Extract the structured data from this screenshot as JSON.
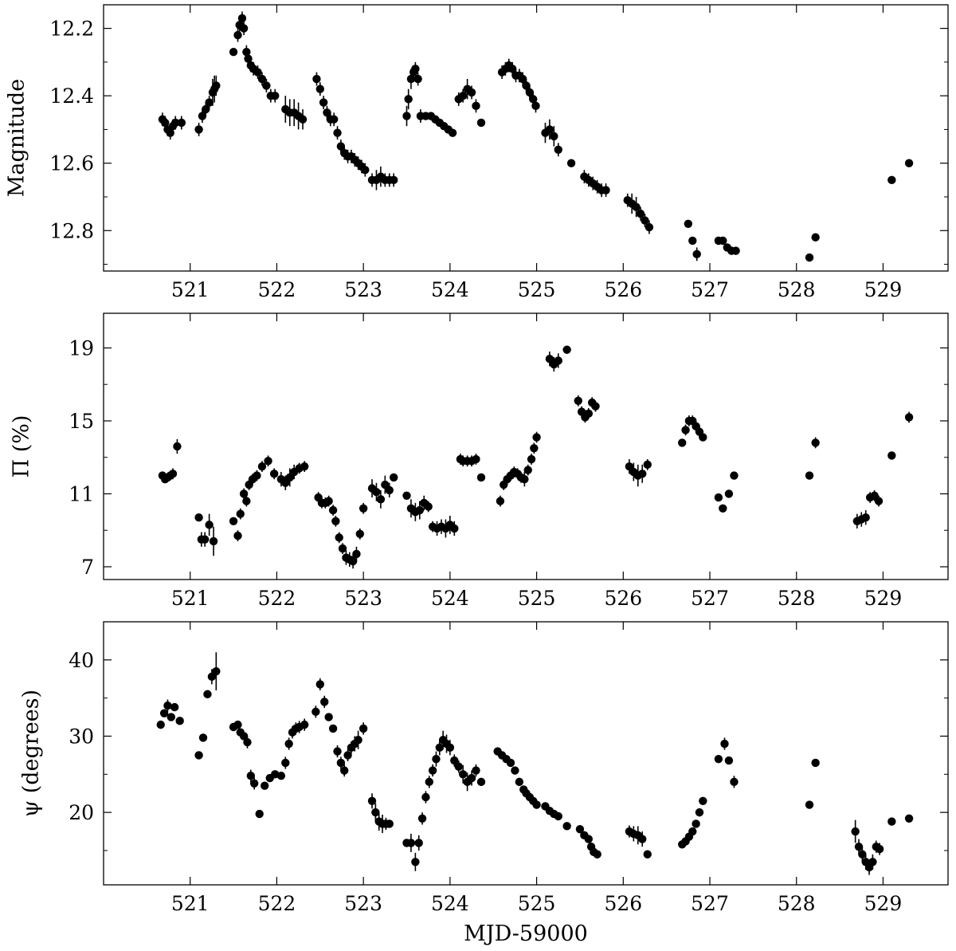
{
  "chart_data": [
    {
      "type": "scatter",
      "ylabel": "Magnitude",
      "xlabel": "",
      "xlim": [
        520.0,
        529.75
      ],
      "ylim": [
        12.92,
        12.13
      ],
      "y_inverted": true,
      "xticks": [
        521,
        522,
        523,
        524,
        525,
        526,
        527,
        528,
        529
      ],
      "yticks": [
        12.2,
        12.4,
        12.6,
        12.8
      ],
      "yticks_minor": [
        12.3,
        12.5,
        12.7,
        12.9
      ],
      "yticklabels": [
        "12.2",
        "12.4",
        "12.6",
        "12.8"
      ],
      "grid": false,
      "x": [
        520.68,
        520.71,
        520.74,
        520.77,
        520.8,
        520.83,
        520.9,
        521.1,
        521.14,
        521.18,
        521.22,
        521.26,
        521.28,
        521.3,
        521.5,
        521.55,
        521.57,
        521.6,
        521.62,
        521.65,
        521.67,
        521.7,
        521.73,
        521.78,
        521.83,
        521.88,
        521.93,
        521.98,
        522.1,
        522.15,
        522.2,
        522.25,
        522.3,
        522.46,
        522.5,
        522.54,
        522.58,
        522.62,
        522.66,
        522.7,
        522.74,
        522.78,
        522.82,
        522.86,
        522.9,
        522.94,
        522.98,
        523.02,
        523.1,
        523.15,
        523.2,
        523.25,
        523.3,
        523.35,
        523.5,
        523.52,
        523.55,
        523.58,
        523.6,
        523.63,
        523.66,
        523.72,
        523.78,
        523.83,
        523.88,
        523.93,
        523.98,
        524.03,
        524.1,
        524.15,
        524.2,
        524.25,
        524.3,
        524.36,
        524.6,
        524.64,
        524.68,
        524.72,
        524.76,
        524.8,
        524.84,
        524.88,
        524.92,
        524.96,
        524.99,
        525.1,
        525.15,
        525.2,
        525.25,
        525.4,
        525.55,
        525.6,
        525.65,
        525.7,
        525.75,
        525.8,
        526.05,
        526.1,
        526.15,
        526.2,
        526.25,
        526.3,
        526.75,
        526.8,
        526.85,
        527.1,
        527.15,
        527.2,
        527.25,
        527.3,
        528.15,
        528.22,
        529.1,
        529.3
      ],
      "y": [
        12.47,
        12.48,
        12.5,
        12.51,
        12.49,
        12.48,
        12.48,
        12.5,
        12.46,
        12.44,
        12.42,
        12.39,
        12.38,
        12.37,
        12.27,
        12.22,
        12.19,
        12.17,
        12.2,
        12.27,
        12.29,
        12.31,
        12.32,
        12.33,
        12.35,
        12.37,
        12.4,
        12.4,
        12.44,
        12.45,
        12.45,
        12.46,
        12.47,
        12.35,
        12.38,
        12.42,
        12.45,
        12.47,
        12.47,
        12.51,
        12.55,
        12.57,
        12.58,
        12.58,
        12.59,
        12.6,
        12.61,
        12.62,
        12.65,
        12.65,
        12.64,
        12.65,
        12.65,
        12.65,
        12.46,
        12.41,
        12.35,
        12.33,
        12.32,
        12.35,
        12.46,
        12.46,
        12.46,
        12.47,
        12.48,
        12.49,
        12.5,
        12.51,
        12.41,
        12.4,
        12.38,
        12.39,
        12.43,
        12.48,
        12.33,
        12.32,
        12.31,
        12.32,
        12.34,
        12.34,
        12.35,
        12.37,
        12.39,
        12.41,
        12.43,
        12.51,
        12.5,
        12.52,
        12.56,
        12.6,
        12.64,
        12.65,
        12.66,
        12.67,
        12.68,
        12.68,
        12.71,
        12.72,
        12.73,
        12.75,
        12.77,
        12.79,
        12.78,
        12.83,
        12.87,
        12.83,
        12.83,
        12.85,
        12.86,
        12.86,
        12.88,
        12.82,
        12.65,
        12.6
      ],
      "yerr": [
        0.02,
        0.02,
        0.02,
        0.02,
        0.02,
        0.02,
        0.02,
        0.02,
        0.02,
        0.02,
        0.02,
        0.04,
        0.04,
        0.03,
        0.01,
        0.02,
        0.02,
        0.02,
        0.02,
        0.02,
        0.02,
        0.02,
        0.02,
        0.02,
        0.02,
        0.02,
        0.02,
        0.02,
        0.04,
        0.04,
        0.04,
        0.04,
        0.03,
        0.02,
        0.02,
        0.02,
        0.02,
        0.02,
        0.02,
        0.02,
        0.02,
        0.02,
        0.02,
        0.02,
        0.02,
        0.02,
        0.02,
        0.02,
        0.02,
        0.03,
        0.03,
        0.02,
        0.02,
        0.02,
        0.03,
        0.03,
        0.03,
        0.02,
        0.02,
        0.02,
        0.02,
        0.01,
        0.01,
        0.01,
        0.01,
        0.01,
        0.01,
        0.01,
        0.02,
        0.02,
        0.03,
        0.02,
        0.02,
        0.01,
        0.02,
        0.02,
        0.02,
        0.02,
        0.02,
        0.02,
        0.02,
        0.02,
        0.02,
        0.02,
        0.02,
        0.03,
        0.03,
        0.03,
        0.02,
        0.01,
        0.02,
        0.02,
        0.02,
        0.02,
        0.02,
        0.02,
        0.02,
        0.03,
        0.03,
        0.02,
        0.02,
        0.02,
        0.01,
        0.01,
        0.02,
        0.01,
        0.01,
        0.01,
        0.01,
        0.01,
        0.01,
        0.01,
        0.01,
        0.01
      ]
    },
    {
      "type": "scatter",
      "ylabel": "Π (%)",
      "xlabel": "",
      "xlim": [
        520.0,
        529.75
      ],
      "ylim": [
        6.3,
        20.9
      ],
      "xticks": [
        521,
        522,
        523,
        524,
        525,
        526,
        527,
        528,
        529
      ],
      "yticks": [
        7,
        11,
        15,
        19
      ],
      "yticks_minor": [
        9,
        13,
        17
      ],
      "yticklabels": [
        "7",
        "11",
        "15",
        "19"
      ],
      "grid": false,
      "x": [
        520.68,
        520.71,
        520.74,
        520.77,
        520.8,
        520.85,
        521.1,
        521.13,
        521.17,
        521.22,
        521.27,
        521.5,
        521.55,
        521.58,
        521.62,
        521.65,
        521.68,
        521.72,
        521.77,
        521.83,
        521.9,
        521.97,
        522.05,
        522.1,
        522.15,
        522.2,
        522.26,
        522.32,
        522.48,
        522.52,
        522.56,
        522.6,
        522.65,
        522.68,
        522.72,
        522.76,
        522.8,
        522.84,
        522.88,
        522.92,
        522.96,
        523.0,
        523.1,
        523.15,
        523.2,
        523.25,
        523.3,
        523.35,
        523.5,
        523.55,
        523.6,
        523.65,
        523.7,
        523.75,
        523.8,
        523.85,
        523.9,
        523.95,
        524.0,
        524.05,
        524.12,
        524.15,
        524.2,
        524.25,
        524.3,
        524.36,
        524.58,
        524.62,
        524.66,
        524.7,
        524.74,
        524.78,
        524.82,
        524.86,
        524.9,
        524.94,
        524.97,
        525.0,
        525.15,
        525.2,
        525.25,
        525.35,
        525.48,
        525.52,
        525.56,
        525.6,
        525.64,
        525.68,
        526.07,
        526.12,
        526.17,
        526.22,
        526.28,
        526.68,
        526.72,
        526.76,
        526.8,
        526.84,
        526.88,
        526.92,
        527.1,
        527.15,
        527.22,
        527.28,
        528.15,
        528.22,
        528.7,
        528.75,
        528.8,
        528.85,
        528.9,
        528.95,
        529.1,
        529.3
      ],
      "y": [
        12.0,
        11.8,
        11.9,
        12.0,
        12.1,
        13.6,
        9.7,
        8.5,
        8.5,
        9.3,
        8.4,
        9.5,
        8.7,
        9.9,
        11.0,
        10.6,
        11.5,
        11.8,
        12.0,
        12.5,
        12.8,
        12.1,
        11.8,
        11.6,
        11.9,
        12.2,
        12.4,
        12.5,
        10.8,
        10.5,
        10.5,
        10.6,
        10.1,
        9.5,
        8.6,
        8.0,
        7.5,
        7.4,
        7.3,
        7.7,
        8.8,
        10.2,
        11.3,
        11.1,
        10.7,
        11.5,
        11.2,
        11.9,
        10.9,
        10.2,
        10.0,
        10.1,
        10.5,
        10.3,
        9.2,
        9.1,
        9.2,
        9.1,
        9.3,
        9.1,
        12.9,
        12.8,
        12.8,
        12.8,
        12.9,
        11.9,
        10.6,
        11.5,
        11.8,
        12.0,
        12.2,
        12.1,
        11.9,
        11.8,
        12.3,
        12.9,
        13.5,
        14.1,
        18.4,
        18.1,
        18.3,
        18.9,
        16.1,
        15.5,
        15.2,
        15.4,
        16.0,
        15.8,
        12.5,
        12.2,
        12.0,
        12.1,
        12.6,
        13.8,
        14.5,
        15.0,
        15.0,
        14.7,
        14.4,
        14.1,
        10.8,
        10.2,
        11.0,
        12.0,
        12.0,
        13.8,
        9.5,
        9.6,
        9.7,
        10.8,
        10.9,
        10.6,
        13.1,
        15.2
      ],
      "yerr": [
        0.2,
        0.2,
        0.2,
        0.2,
        0.3,
        0.4,
        0.2,
        0.4,
        0.4,
        0.6,
        0.8,
        0.2,
        0.3,
        0.3,
        0.3,
        0.3,
        0.3,
        0.3,
        0.3,
        0.3,
        0.3,
        0.3,
        0.4,
        0.4,
        0.5,
        0.4,
        0.3,
        0.3,
        0.3,
        0.3,
        0.3,
        0.3,
        0.3,
        0.3,
        0.3,
        0.3,
        0.4,
        0.4,
        0.4,
        0.4,
        0.3,
        0.3,
        0.5,
        0.5,
        0.5,
        0.5,
        0.4,
        0.2,
        0.2,
        0.5,
        0.5,
        0.5,
        0.4,
        0.3,
        0.3,
        0.4,
        0.4,
        0.5,
        0.5,
        0.4,
        0.3,
        0.3,
        0.3,
        0.3,
        0.3,
        0.2,
        0.3,
        0.3,
        0.3,
        0.3,
        0.3,
        0.3,
        0.3,
        0.4,
        0.3,
        0.3,
        0.3,
        0.3,
        0.4,
        0.4,
        0.4,
        0.2,
        0.3,
        0.3,
        0.3,
        0.3,
        0.3,
        0.3,
        0.4,
        0.5,
        0.6,
        0.5,
        0.3,
        0.2,
        0.3,
        0.3,
        0.3,
        0.3,
        0.3,
        0.2,
        0.2,
        0.2,
        0.2,
        0.2,
        0.2,
        0.3,
        0.4,
        0.4,
        0.4,
        0.3,
        0.3,
        0.3,
        0.2,
        0.3
      ]
    },
    {
      "type": "scatter",
      "ylabel": "ψ (degrees)",
      "xlabel": "MJD-59000",
      "xlim": [
        520.0,
        529.75
      ],
      "ylim": [
        10.5,
        45.0
      ],
      "xticks": [
        521,
        522,
        523,
        524,
        525,
        526,
        527,
        528,
        529
      ],
      "xticklabels": [
        "521",
        "522",
        "523",
        "524",
        "525",
        "526",
        "527",
        "528",
        "529"
      ],
      "yticks": [
        20,
        30,
        40
      ],
      "yticks_minor": [
        15,
        25,
        35
      ],
      "yticklabels": [
        "20",
        "30",
        "40"
      ],
      "grid": false,
      "x": [
        520.66,
        520.7,
        520.74,
        520.78,
        520.82,
        520.88,
        521.1,
        521.15,
        521.2,
        521.25,
        521.3,
        521.5,
        521.55,
        521.58,
        521.62,
        521.66,
        521.7,
        521.74,
        521.8,
        521.86,
        521.92,
        521.98,
        522.05,
        522.1,
        522.14,
        522.18,
        522.22,
        522.26,
        522.32,
        522.45,
        522.5,
        522.55,
        522.6,
        522.65,
        522.7,
        522.74,
        522.78,
        522.82,
        522.86,
        522.9,
        522.94,
        523.0,
        523.1,
        523.14,
        523.18,
        523.22,
        523.26,
        523.3,
        523.5,
        523.55,
        523.6,
        523.64,
        523.68,
        523.72,
        523.76,
        523.8,
        523.84,
        523.88,
        523.92,
        523.96,
        524.0,
        524.05,
        524.1,
        524.15,
        524.2,
        524.25,
        524.3,
        524.36,
        524.55,
        524.6,
        524.65,
        524.7,
        524.75,
        524.8,
        524.85,
        524.88,
        524.92,
        524.96,
        525.0,
        525.1,
        525.15,
        525.2,
        525.25,
        525.35,
        525.5,
        525.55,
        525.6,
        525.63,
        525.66,
        525.7,
        526.07,
        526.12,
        526.17,
        526.22,
        526.28,
        526.68,
        526.72,
        526.76,
        526.8,
        526.84,
        526.88,
        526.92,
        527.1,
        527.17,
        527.22,
        527.28,
        528.15,
        528.22,
        528.68,
        528.72,
        528.76,
        528.8,
        528.84,
        528.88,
        528.92,
        528.96,
        529.1,
        529.3
      ],
      "y": [
        31.5,
        33.0,
        34.0,
        32.5,
        33.8,
        32.0,
        27.5,
        29.8,
        35.5,
        37.8,
        38.5,
        31.2,
        31.5,
        30.5,
        30.0,
        29.2,
        24.8,
        23.8,
        19.8,
        23.5,
        24.5,
        25.0,
        24.8,
        26.5,
        29.0,
        30.5,
        31.0,
        31.2,
        31.5,
        33.2,
        36.8,
        34.5,
        32.5,
        31.0,
        28.0,
        26.5,
        25.5,
        27.5,
        28.5,
        29.0,
        29.5,
        31.0,
        21.5,
        20.0,
        18.8,
        18.5,
        18.5,
        18.5,
        16.0,
        16.0,
        13.5,
        16.0,
        19.2,
        22.0,
        24.0,
        25.5,
        27.0,
        28.5,
        29.5,
        29.0,
        28.5,
        26.8,
        26.0,
        25.0,
        24.0,
        24.5,
        25.5,
        24.0,
        28.0,
        27.5,
        27.0,
        26.5,
        25.5,
        24.0,
        23.0,
        22.5,
        22.0,
        21.5,
        21.0,
        20.8,
        20.2,
        19.8,
        19.5,
        18.2,
        17.8,
        17.0,
        16.5,
        15.5,
        14.8,
        14.5,
        17.5,
        17.2,
        17.0,
        16.5,
        14.5,
        15.8,
        16.2,
        16.8,
        17.5,
        18.5,
        20.0,
        21.5,
        27.0,
        29.0,
        26.8,
        24.0,
        21.0,
        26.5,
        17.5,
        15.5,
        14.5,
        13.5,
        12.8,
        13.5,
        15.5,
        15.2,
        18.8,
        19.2
      ],
      "yerr": [
        0.5,
        0.5,
        0.8,
        0.5,
        0.5,
        0.5,
        0.5,
        0.5,
        0.5,
        1.0,
        2.5,
        0.5,
        0.5,
        0.5,
        0.5,
        0.8,
        0.8,
        0.8,
        0.5,
        0.5,
        0.5,
        0.5,
        0.5,
        0.8,
        0.8,
        0.8,
        0.8,
        0.8,
        0.8,
        0.8,
        0.8,
        0.8,
        0.5,
        0.5,
        0.8,
        0.8,
        0.8,
        0.8,
        0.8,
        1.0,
        1.2,
        0.8,
        1.0,
        1.2,
        1.2,
        1.2,
        0.8,
        0.5,
        0.5,
        1.2,
        1.2,
        1.0,
        0.8,
        0.8,
        0.8,
        0.8,
        1.0,
        1.0,
        1.2,
        1.2,
        1.0,
        0.8,
        0.8,
        1.2,
        1.2,
        1.0,
        0.8,
        0.5,
        0.5,
        0.5,
        0.5,
        0.5,
        0.5,
        0.5,
        0.5,
        0.5,
        0.5,
        0.5,
        0.5,
        0.5,
        0.5,
        0.5,
        0.5,
        0.5,
        0.5,
        0.5,
        0.5,
        0.5,
        0.5,
        0.5,
        0.8,
        1.0,
        1.2,
        1.0,
        0.5,
        0.5,
        0.5,
        0.5,
        0.5,
        0.5,
        0.5,
        0.5,
        0.5,
        0.8,
        0.5,
        0.8,
        0.5,
        0.5,
        1.5,
        1.0,
        1.0,
        1.0,
        1.0,
        1.0,
        0.8,
        0.8,
        0.5,
        0.5
      ]
    }
  ]
}
